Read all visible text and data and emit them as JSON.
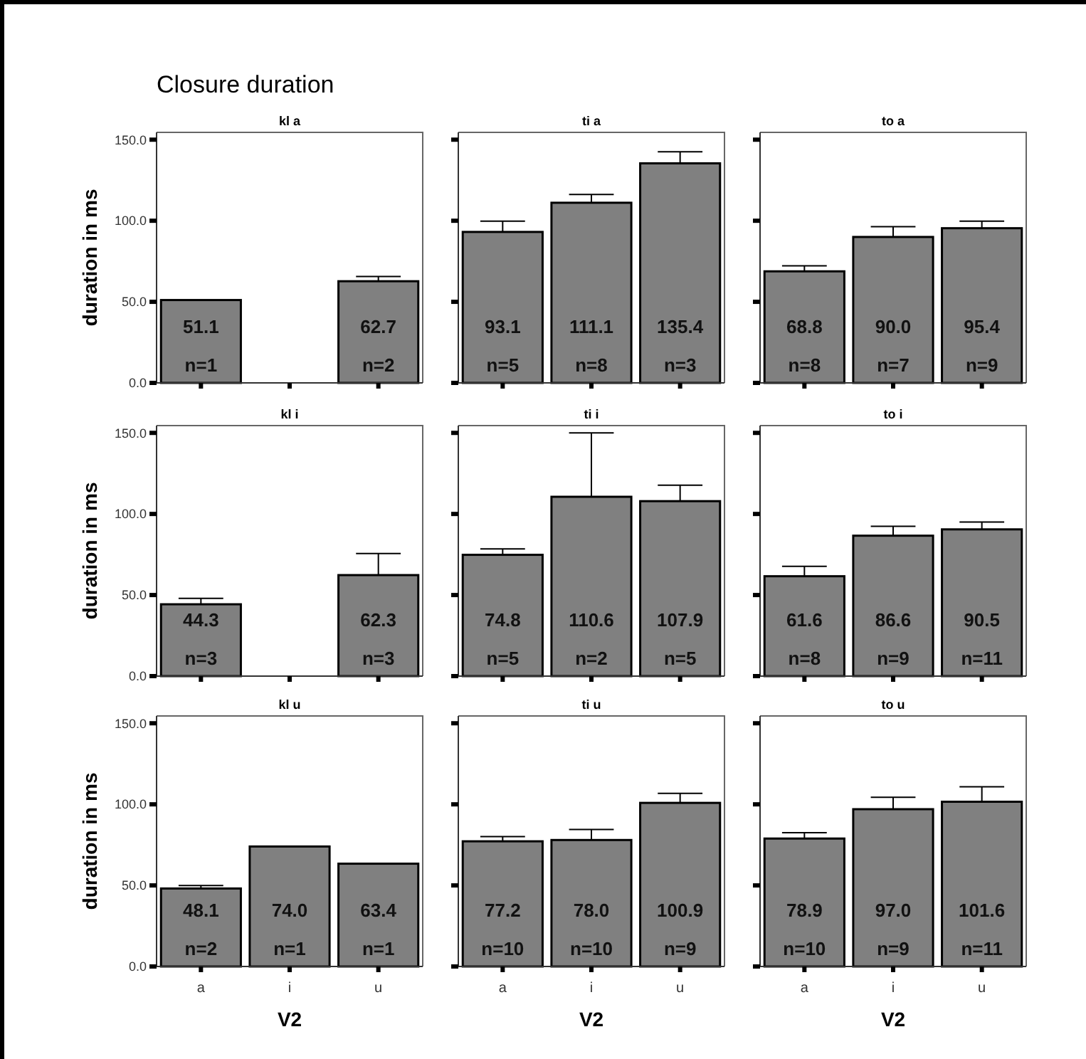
{
  "chart_data": [
    {
      "type": "bar",
      "title": "kl a",
      "ylabel": "duration in ms",
      "categories": [
        "a",
        "i",
        "u"
      ],
      "values": [
        51.1,
        null,
        62.7
      ],
      "value_labels": [
        "51.1",
        null,
        "62.7"
      ],
      "errors": [
        null,
        null,
        [
          62.7,
          65.6
        ]
      ],
      "color": "#808080",
      "ylim": [
        0,
        154.5
      ],
      "yticks": [
        {
          "value": 0,
          "label": "0.0"
        },
        {
          "value": 50,
          "label": "50.0"
        },
        {
          "value": 100,
          "label": "100.0"
        },
        {
          "value": 150,
          "label": "150.0"
        }
      ],
      "tick_labels": "y",
      "annotations": [
        "Closure duration",
        {
          "text": "n=1",
          "x": "a",
          "y": 0
        },
        {
          "text": "n=2",
          "x": "u",
          "y": 0
        }
      ]
    },
    {
      "type": "bar",
      "title": "ti a",
      "categories": [
        "a",
        "i",
        "u"
      ],
      "values": [
        93.1,
        111.1,
        135.4
      ],
      "value_labels": [
        "93.1",
        "111.1",
        "135.4"
      ],
      "errors": [
        [
          93.1,
          99.7
        ],
        [
          111.1,
          116.2
        ],
        [
          135.4,
          142.5
        ]
      ],
      "color": "#808080",
      "ylim": [
        0,
        154.5
      ],
      "yticks": [
        {
          "value": 0,
          "label": null
        },
        {
          "value": 50,
          "label": null
        },
        {
          "value": 100,
          "label": null
        },
        {
          "value": 150,
          "label": null
        }
      ],
      "tick_labels": false,
      "annotations": [
        {
          "text": "n=5",
          "x": "a",
          "y": 0
        },
        {
          "text": "n=8",
          "x": "i",
          "y": 0
        },
        {
          "text": "n=3",
          "x": "u",
          "y": 0
        }
      ]
    },
    {
      "type": "bar",
      "title": "to a",
      "categories": [
        "a",
        "i",
        "u"
      ],
      "values": [
        68.8,
        90.0,
        95.4
      ],
      "value_labels": [
        "68.8",
        "90.0",
        "95.4"
      ],
      "errors": [
        [
          68.8,
          72.2
        ],
        [
          90.0,
          96.3
        ],
        [
          95.4,
          99.7
        ]
      ],
      "color": "#808080",
      "ylim": [
        0,
        154.5
      ],
      "yticks": [
        {
          "value": 0,
          "label": null
        },
        {
          "value": 50,
          "label": null
        },
        {
          "value": 100,
          "label": null
        },
        {
          "value": 150,
          "label": null
        }
      ],
      "tick_labels": false,
      "annotations": [
        {
          "text": "n=8",
          "x": "a",
          "y": 0
        },
        {
          "text": "n=7",
          "x": "i",
          "y": 0
        },
        {
          "text": "n=9",
          "x": "u",
          "y": 0
        }
      ]
    },
    {
      "type": "bar",
      "title": "kl i",
      "ylabel": "duration in ms",
      "categories": [
        "a",
        "i",
        "u"
      ],
      "values": [
        44.3,
        null,
        62.3
      ],
      "value_labels": [
        "44.3",
        null,
        "62.3"
      ],
      "errors": [
        [
          44.3,
          47.9
        ],
        null,
        [
          62.3,
          75.6
        ]
      ],
      "color": "#808080",
      "ylim": [
        0,
        154.5
      ],
      "yticks": [
        {
          "value": 0,
          "label": "0.0"
        },
        {
          "value": 50,
          "label": "50.0"
        },
        {
          "value": 100,
          "label": "100.0"
        },
        {
          "value": 150,
          "label": "150.0"
        }
      ],
      "tick_labels": "y",
      "annotations": [
        {
          "text": "n=3",
          "x": "a",
          "y": 0
        },
        {
          "text": "n=3",
          "x": "u",
          "y": 0
        }
      ]
    },
    {
      "type": "bar",
      "title": "ti i",
      "categories": [
        "a",
        "i",
        "u"
      ],
      "values": [
        74.8,
        110.6,
        107.9
      ],
      "value_labels": [
        "74.8",
        "110.6",
        "107.9"
      ],
      "errors": [
        [
          74.8,
          78.5
        ],
        [
          110.6,
          150.0
        ],
        [
          107.9,
          117.7
        ]
      ],
      "color": "#808080",
      "ylim": [
        0,
        154.5
      ],
      "yticks": [
        {
          "value": 0,
          "label": null
        },
        {
          "value": 50,
          "label": null
        },
        {
          "value": 100,
          "label": null
        },
        {
          "value": 150,
          "label": null
        }
      ],
      "tick_labels": false,
      "annotations": [
        {
          "text": "n=5",
          "x": "a",
          "y": 0
        },
        {
          "text": "n=2",
          "x": "i",
          "y": 0
        },
        {
          "text": "n=5",
          "x": "u",
          "y": 0
        }
      ]
    },
    {
      "type": "bar",
      "title": "to i",
      "categories": [
        "a",
        "i",
        "u"
      ],
      "values": [
        61.6,
        86.6,
        90.5
      ],
      "value_labels": [
        "61.6",
        "86.6",
        "90.5"
      ],
      "errors": [
        [
          61.6,
          67.7
        ],
        [
          86.6,
          92.4
        ],
        [
          90.5,
          95.0
        ]
      ],
      "color": "#808080",
      "ylim": [
        0,
        154.5
      ],
      "yticks": [
        {
          "value": 0,
          "label": null
        },
        {
          "value": 50,
          "label": null
        },
        {
          "value": 100,
          "label": null
        },
        {
          "value": 150,
          "label": null
        }
      ],
      "tick_labels": false,
      "annotations": [
        {
          "text": "n=8",
          "x": "a",
          "y": 0
        },
        {
          "text": "n=9",
          "x": "i",
          "y": 0
        },
        {
          "text": "n=11",
          "x": "u",
          "y": 0
        }
      ]
    },
    {
      "type": "bar",
      "title": "kl u",
      "xlabel": "V2",
      "ylabel": "duration in ms",
      "categories": [
        "a",
        "i",
        "u"
      ],
      "values": [
        48.1,
        74.0,
        63.4
      ],
      "value_labels": [
        "48.1",
        "74.0",
        "63.4"
      ],
      "errors": [
        [
          48.1,
          49.9
        ],
        null,
        null
      ],
      "color": "#808080",
      "ylim": [
        0,
        154.5
      ],
      "yticks": [
        {
          "value": 0,
          "label": "0.0"
        },
        {
          "value": 50,
          "label": "50.0"
        },
        {
          "value": 100,
          "label": "100.0"
        },
        {
          "value": 150,
          "label": "150.0"
        }
      ],
      "annotations": [
        {
          "text": "n=2",
          "x": "a",
          "y": 0
        },
        {
          "text": "n=1",
          "x": "i",
          "y": 0
        },
        {
          "text": "n=1",
          "x": "u",
          "y": 0
        }
      ]
    },
    {
      "type": "bar",
      "title": "ti u",
      "xlabel": "V2",
      "categories": [
        "a",
        "i",
        "u"
      ],
      "values": [
        77.2,
        78.0,
        100.9
      ],
      "value_labels": [
        "77.2",
        "78.0",
        "100.9"
      ],
      "errors": [
        [
          77.2,
          80.1
        ],
        [
          78.0,
          84.5
        ],
        [
          100.9,
          106.8
        ]
      ],
      "color": "#808080",
      "ylim": [
        0,
        154.5
      ],
      "yticks": [
        {
          "value": 0,
          "label": null
        },
        {
          "value": 50,
          "label": null
        },
        {
          "value": 100,
          "label": null
        },
        {
          "value": 150,
          "label": null
        }
      ],
      "tick_labels": "x",
      "annotations": [
        {
          "text": "n=10",
          "x": "a",
          "y": 0
        },
        {
          "text": "n=10",
          "x": "i",
          "y": 0
        },
        {
          "text": "n=9",
          "x": "u",
          "y": 0
        }
      ]
    },
    {
      "type": "bar",
      "title": "to u",
      "xlabel": "V2",
      "categories": [
        "a",
        "i",
        "u"
      ],
      "values": [
        78.9,
        97.0,
        101.6
      ],
      "value_labels": [
        "78.9",
        "97.0",
        "101.6"
      ],
      "errors": [
        [
          78.9,
          82.5
        ],
        [
          97.0,
          104.4
        ],
        [
          101.6,
          110.8
        ]
      ],
      "color": "#808080",
      "ylim": [
        0,
        154.5
      ],
      "yticks": [
        {
          "value": 0,
          "label": null
        },
        {
          "value": 50,
          "label": null
        },
        {
          "value": 100,
          "label": null
        },
        {
          "value": 150,
          "label": null
        }
      ],
      "tick_labels": "x",
      "annotations": [
        {
          "text": "n=10",
          "x": "a",
          "y": 0
        },
        {
          "text": "n=9",
          "x": "i",
          "y": 0
        },
        {
          "text": "n=11",
          "x": "u",
          "y": 0
        }
      ]
    }
  ]
}
